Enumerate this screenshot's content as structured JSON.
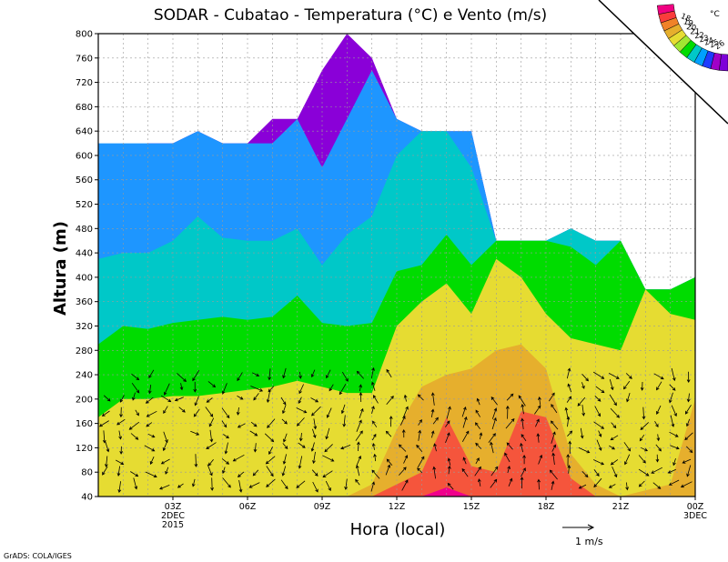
{
  "chart_data": {
    "type": "heatmap",
    "title": "SODAR - Cubatao - Temperatura (°C) e Vento (m/s)",
    "xlabel": "Hora (local)",
    "ylabel": "Altura (m)",
    "credit": "GrADS: COLA/IGES",
    "ylim": [
      40,
      800
    ],
    "xlim_hours": [
      0,
      24
    ],
    "yticks": [
      40,
      80,
      120,
      160,
      200,
      240,
      280,
      320,
      360,
      400,
      440,
      480,
      520,
      560,
      600,
      640,
      680,
      720,
      760,
      800
    ],
    "xticks": [
      {
        "hour": 3,
        "label": "03Z",
        "sub1": "2DEC",
        "sub2": "2015"
      },
      {
        "hour": 6,
        "label": "06Z",
        "sub1": "",
        "sub2": ""
      },
      {
        "hour": 9,
        "label": "09Z",
        "sub1": "",
        "sub2": ""
      },
      {
        "hour": 12,
        "label": "12Z",
        "sub1": "",
        "sub2": ""
      },
      {
        "hour": 15,
        "label": "15Z",
        "sub1": "",
        "sub2": ""
      },
      {
        "hour": 18,
        "label": "18Z",
        "sub1": "",
        "sub2": ""
      },
      {
        "hour": 21,
        "label": "21Z",
        "sub1": "",
        "sub2": ""
      },
      {
        "hour": 24,
        "label": "00Z",
        "sub1": "3DEC",
        "sub2": ""
      }
    ],
    "grid": true,
    "legend": {
      "unit": "°C",
      "placement": "top-right",
      "levels": [
        "18",
        "19",
        "20",
        "21",
        "22",
        "23",
        "24",
        "25",
        "26"
      ],
      "colors": [
        "#7d00d8",
        "#a000c8",
        "#1e3cff",
        "#00a0ff",
        "#00c8c8",
        "#00dc00",
        "#a0e632",
        "#e6dc32",
        "#e6af2d",
        "#f08228",
        "#fa3c3c",
        "#f00082"
      ]
    },
    "wind_reference": {
      "value": 1,
      "label": "1 m/s"
    },
    "temperature_bands": [
      {
        "name": "18-19",
        "color": "#8a00d8",
        "top": [
          [
            0,
            620
          ],
          [
            1,
            610
          ],
          [
            2,
            620
          ],
          [
            3,
            620
          ],
          [
            4,
            640
          ],
          [
            5,
            620
          ],
          [
            6,
            620
          ],
          [
            7,
            660
          ],
          [
            8,
            660
          ],
          [
            9,
            740
          ],
          [
            10,
            800
          ],
          [
            11,
            760
          ],
          [
            12,
            660
          ],
          [
            13,
            640
          ],
          [
            14,
            640
          ],
          [
            15,
            640
          ],
          [
            16,
            460
          ],
          [
            17,
            460
          ],
          [
            18,
            460
          ],
          [
            19,
            480
          ],
          [
            20,
            460
          ],
          [
            21,
            460
          ],
          [
            22,
            380
          ],
          [
            23,
            380
          ],
          [
            24,
            400
          ]
        ]
      },
      {
        "name": "19-20",
        "color": "#1e96ff",
        "top": [
          [
            0,
            620
          ],
          [
            1,
            620
          ],
          [
            2,
            620
          ],
          [
            3,
            620
          ],
          [
            4,
            640
          ],
          [
            5,
            620
          ],
          [
            6,
            620
          ],
          [
            7,
            620
          ],
          [
            8,
            660
          ],
          [
            9,
            580
          ],
          [
            10,
            660
          ],
          [
            11,
            740
          ],
          [
            12,
            660
          ],
          [
            13,
            640
          ],
          [
            14,
            640
          ],
          [
            15,
            640
          ],
          [
            16,
            460
          ],
          [
            17,
            460
          ],
          [
            18,
            460
          ],
          [
            19,
            480
          ],
          [
            20,
            460
          ],
          [
            21,
            460
          ],
          [
            22,
            380
          ],
          [
            23,
            380
          ],
          [
            24,
            400
          ]
        ]
      },
      {
        "name": "20-21",
        "color": "#00c8c8",
        "top": [
          [
            0,
            430
          ],
          [
            1,
            440
          ],
          [
            2,
            440
          ],
          [
            3,
            460
          ],
          [
            4,
            500
          ],
          [
            5,
            465
          ],
          [
            6,
            460
          ],
          [
            7,
            460
          ],
          [
            8,
            480
          ],
          [
            9,
            420
          ],
          [
            10,
            470
          ],
          [
            11,
            500
          ],
          [
            12,
            600
          ],
          [
            13,
            640
          ],
          [
            14,
            640
          ],
          [
            15,
            580
          ],
          [
            16,
            460
          ],
          [
            17,
            460
          ],
          [
            18,
            460
          ],
          [
            19,
            480
          ],
          [
            20,
            460
          ],
          [
            21,
            460
          ],
          [
            22,
            380
          ],
          [
            23,
            380
          ],
          [
            24,
            400
          ]
        ]
      },
      {
        "name": "21-22",
        "color": "#00dc00",
        "top": [
          [
            0,
            290
          ],
          [
            1,
            320
          ],
          [
            2,
            315
          ],
          [
            3,
            325
          ],
          [
            4,
            330
          ],
          [
            5,
            335
          ],
          [
            6,
            330
          ],
          [
            7,
            335
          ],
          [
            8,
            370
          ],
          [
            9,
            325
          ],
          [
            10,
            320
          ],
          [
            11,
            325
          ],
          [
            12,
            410
          ],
          [
            13,
            420
          ],
          [
            14,
            470
          ],
          [
            15,
            420
          ],
          [
            16,
            460
          ],
          [
            17,
            460
          ],
          [
            18,
            460
          ],
          [
            19,
            450
          ],
          [
            20,
            420
          ],
          [
            21,
            460
          ],
          [
            22,
            380
          ],
          [
            23,
            380
          ],
          [
            24,
            400
          ]
        ]
      },
      {
        "name": "22-23",
        "color": "#e6dc32",
        "top": [
          [
            0,
            170
          ],
          [
            1,
            200
          ],
          [
            2,
            200
          ],
          [
            3,
            205
          ],
          [
            4,
            205
          ],
          [
            5,
            210
          ],
          [
            6,
            215
          ],
          [
            7,
            220
          ],
          [
            8,
            230
          ],
          [
            9,
            220
          ],
          [
            10,
            210
          ],
          [
            11,
            210
          ],
          [
            12,
            320
          ],
          [
            13,
            360
          ],
          [
            14,
            390
          ],
          [
            15,
            340
          ],
          [
            16,
            430
          ],
          [
            17,
            400
          ],
          [
            18,
            340
          ],
          [
            19,
            300
          ],
          [
            20,
            290
          ],
          [
            21,
            280
          ],
          [
            22,
            380
          ],
          [
            23,
            340
          ],
          [
            24,
            330
          ]
        ]
      },
      {
        "name": "23-24",
        "color": "#e6af2d",
        "top": [
          [
            10,
            40
          ],
          [
            11,
            60
          ],
          [
            12,
            150
          ],
          [
            13,
            220
          ],
          [
            14,
            240
          ],
          [
            15,
            250
          ],
          [
            16,
            280
          ],
          [
            17,
            290
          ],
          [
            18,
            250
          ],
          [
            19,
            110
          ],
          [
            20,
            60
          ],
          [
            21,
            40
          ],
          [
            22,
            50
          ],
          [
            23,
            60
          ],
          [
            24,
            200
          ]
        ]
      },
      {
        "name": "24-25",
        "color": "#f5553c",
        "top": [
          [
            11,
            40
          ],
          [
            12,
            60
          ],
          [
            13,
            80
          ],
          [
            14,
            170
          ],
          [
            15,
            90
          ],
          [
            16,
            80
          ],
          [
            17,
            180
          ],
          [
            18,
            170
          ],
          [
            19,
            70
          ],
          [
            20,
            40
          ]
        ]
      },
      {
        "name": "25-26",
        "color": "#f0008c",
        "top": [
          [
            13,
            40
          ],
          [
            14,
            55
          ],
          [
            15,
            40
          ]
        ]
      }
    ]
  }
}
